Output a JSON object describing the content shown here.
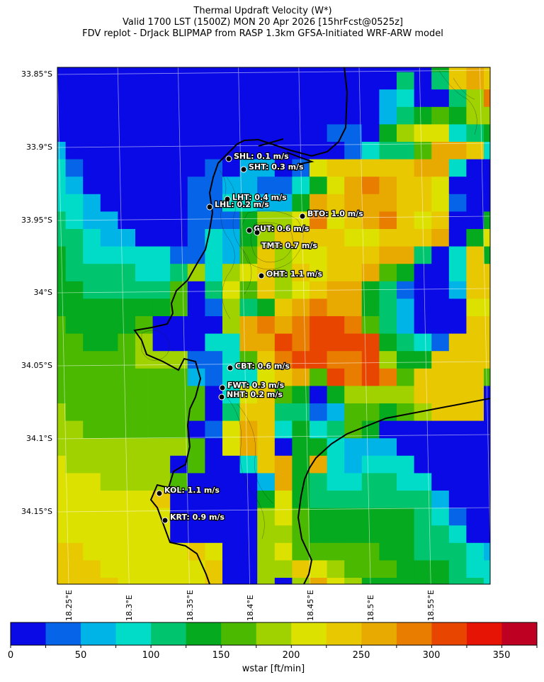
{
  "title": {
    "line1": "Thermal Updraft Velocity (W*)",
    "line2": "Valid 1700 LST (1500Z) MON 20 Apr 2026 [15hrFcst@0525z]",
    "line3": "FDV replot - DrJack BLIPMAP from RASP 1.3km GFSA-Initiated WRF-ARW model"
  },
  "lat_ticks": [
    "33.85°S",
    "33.9°S",
    "33.95°S",
    "34°S",
    "34.05°S",
    "34.1°S",
    "34.15°S"
  ],
  "lon_ticks": [
    "18.25°E",
    "18.3°E",
    "18.35°E",
    "18.4°E",
    "18.45°E",
    "18.5°E",
    "18.55°E"
  ],
  "colorbar": {
    "label": "wstar [ft/min]",
    "ticks": [
      "0",
      "50",
      "100",
      "150",
      "200",
      "250",
      "300",
      "350"
    ],
    "bounds": [
      0,
      25,
      50,
      75,
      100,
      125,
      150,
      175,
      200,
      225,
      250,
      275,
      300,
      325,
      350,
      375
    ],
    "colors": [
      "#0a0ae6",
      "#0564e8",
      "#00b4e8",
      "#00dcc8",
      "#00c46e",
      "#05aa1e",
      "#4bb900",
      "#a0d200",
      "#dce100",
      "#e8c800",
      "#e8aa00",
      "#e87d00",
      "#e84600",
      "#e61405",
      "#be0023"
    ]
  },
  "stations": [
    {
      "label": "SHL: 0.1 m/s"
    },
    {
      "label": "SHT: 0.3 m/s"
    },
    {
      "label": "LHT: 0.4 m/s"
    },
    {
      "label": "LHL: 0.2 m/s"
    },
    {
      "label": "BTO: 1.0 m/s"
    },
    {
      "label": "GUT: 0.6 m/s"
    },
    {
      "label": "TMT: 0.7 m/s"
    },
    {
      "label": "OHT: 1.1 m/s"
    },
    {
      "label": "CBT: 0.6 m/s"
    },
    {
      "label": "FWT: 0.3 m/s"
    },
    {
      "label": "NHT: 0.2 m/s"
    },
    {
      "label": "KOL: 1.1 m/s"
    },
    {
      "label": "KRT: 0.9 m/s"
    }
  ],
  "wstar_class_grid": [
    "000000000000000000000059a9",
    "00000000000000000000404 9a9",
    "00000000000000000002300 47b",
    "00000000000000000002456577",
    "00000000000000001105788345",
    "2000000000000000013446aa9301",
    "31000000010220189999 9aa300",
    "32000000112211358aba998000",
    "332000001133225a9aaa998100",
    "432200001115778b89ab989005",
    "4432200013257999988999a058",
    "5433333113269788999aa40395",
    "544443347378979899a6500399",
    "5544444604869789aa54100299",
    "55555556017459abaa54200088",
    "65555600007ababccb64200099",
    "66556700033aacbcccc5431999",
    "6666677711369bccbbc7559999",
    "66666666213389a6cbcb699996",
    "66666666603896505777799990",
    "76666666604994412665679990",
    "77666666018a93534650000000",
    "77777777608a90553222000000",
    "8777777060039a5a3233300000",
    "8887777600002a543344330000",
    "88888890000058544444442000",
    "88888880000078655555543100",
    "88888880000077655555544300",
    "99888888980078666665544432",
    "99988888890077987666555433",
    "999988888900707a8755555443"
  ]
}
